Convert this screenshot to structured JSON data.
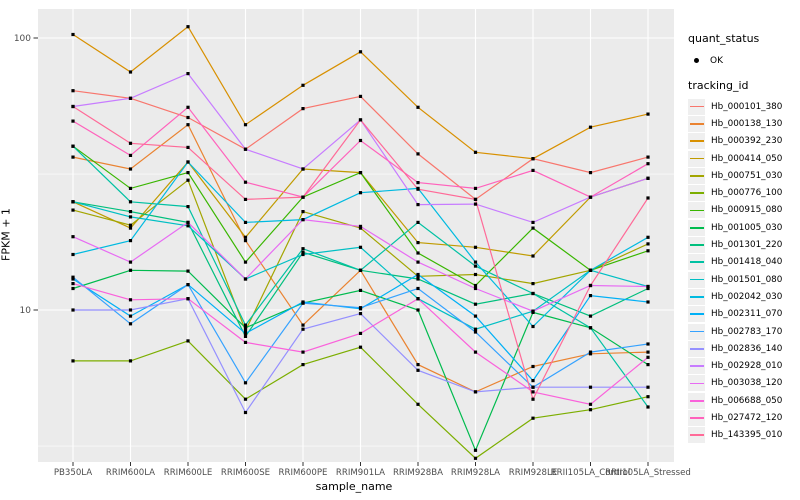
{
  "figure": {
    "background": "#FFFFFF",
    "panel_background": "#EBEBEB",
    "gridline_color": "#FFFFFF",
    "axis_text_color": "#4D4D4D",
    "tick_mark_color": "#333333",
    "point_color": "#000000"
  },
  "legend": {
    "quant_status": {
      "title": "quant_status",
      "items": [
        {
          "label": "OK",
          "symbol": "black-point"
        }
      ]
    },
    "tracking_id": {
      "title": "tracking_id"
    }
  },
  "chart_data": {
    "type": "line",
    "title": "",
    "xlabel": "sample_name",
    "ylabel": "FPKM + 1",
    "yscale": "log10",
    "ylim": [
      2.8,
      127
    ],
    "y_major_ticks": [
      100,
      10
    ],
    "y_minor_ticks": [
      31.6,
      3.16
    ],
    "grid": true,
    "legend_position": "right",
    "point_shape": "small black square",
    "x_categories": [
      "PB350LA",
      "RRIM600LA",
      "RRIM600LE",
      "RRIM600SE",
      "RRIM600PE",
      "RRIM901LA",
      "RRIM928BA",
      "RRIM928LA",
      "RRIM928LE",
      "RRII105LA_Control",
      "RRII105LA_Stressed"
    ],
    "series": [
      {
        "name": "Hb_000101_380",
        "color": "#F8766D",
        "values": [
          64,
          60,
          51,
          39,
          55,
          61,
          37.5,
          25.5,
          36,
          32,
          36.5
        ]
      },
      {
        "name": "Hb_000138_130",
        "color": "#EA8331",
        "values": [
          36.5,
          33,
          48,
          18,
          8.8,
          14,
          6.3,
          5.0,
          6.2,
          6.9,
          7.0
        ]
      },
      {
        "name": "Hb_000392_230",
        "color": "#D89000",
        "values": [
          103,
          75,
          110,
          48,
          67,
          89,
          55.6,
          38,
          36,
          47,
          52.5
        ]
      },
      {
        "name": "Hb_000414_050",
        "color": "#C09B00",
        "values": [
          25,
          20,
          35,
          18.5,
          33,
          32,
          17.7,
          17,
          15.8,
          26,
          30.5
        ]
      },
      {
        "name": "Hb_000751_030",
        "color": "#A3A500",
        "values": [
          23.3,
          20.5,
          30,
          8.4,
          23,
          20,
          13.3,
          13.5,
          12.5,
          14,
          17.5
        ]
      },
      {
        "name": "Hb_000776_100",
        "color": "#7CAE00",
        "values": [
          6.5,
          6.5,
          7.7,
          4.7,
          6.3,
          7.3,
          4.5,
          2.85,
          4.0,
          4.3,
          4.8
        ]
      },
      {
        "name": "Hb_000915_080",
        "color": "#39B600",
        "values": [
          40,
          28,
          32,
          15,
          26,
          32,
          16.2,
          12.3,
          20,
          14,
          16.5
        ]
      },
      {
        "name": "Hb_001005_030",
        "color": "#00BB4E",
        "values": [
          12,
          14,
          13.9,
          8.6,
          10.6,
          11.8,
          10,
          3.05,
          9.8,
          8.6,
          6.3
        ]
      },
      {
        "name": "Hb_001301_220",
        "color": "#00BF7D",
        "values": [
          25,
          23,
          21,
          8,
          16.3,
          14,
          13,
          10.5,
          11.5,
          9.5,
          12
        ]
      },
      {
        "name": "Hb_001418_040",
        "color": "#00C1A3",
        "values": [
          40,
          25,
          24,
          8.8,
          16.8,
          14,
          21,
          14.5,
          11.5,
          8.6,
          4.4
        ]
      },
      {
        "name": "Hb_001501_080",
        "color": "#00BFC4",
        "values": [
          25,
          22,
          20.4,
          13,
          16,
          17,
          11,
          8.5,
          9.9,
          14,
          12.2
        ]
      },
      {
        "name": "Hb_002042_030",
        "color": "#00BAE0",
        "values": [
          16,
          18,
          35,
          21,
          21.5,
          27,
          28,
          15,
          8.7,
          14,
          18.5
        ]
      },
      {
        "name": "Hb_002311_070",
        "color": "#00B0F6",
        "values": [
          13,
          9.5,
          12.4,
          8.2,
          10.7,
          10.1,
          13.5,
          9.5,
          5.5,
          11.3,
          10.7
        ]
      },
      {
        "name": "Hb_002783_170",
        "color": "#35A2FF",
        "values": [
          13.2,
          8.9,
          12.4,
          5.4,
          10.6,
          10.2,
          12,
          8.3,
          5.2,
          7.0,
          7.5
        ]
      },
      {
        "name": "Hb_002836_140",
        "color": "#9590FF",
        "values": [
          10,
          10,
          11,
          4.2,
          8.5,
          9.7,
          6.0,
          5.0,
          5.2,
          5.2,
          5.2
        ]
      },
      {
        "name": "Hb_002928_010",
        "color": "#C77CFF",
        "values": [
          56,
          60,
          74,
          39,
          33,
          50,
          24.4,
          24.5,
          21,
          26,
          30.5
        ]
      },
      {
        "name": "Hb_003038_120",
        "color": "#E76BF3",
        "values": [
          18.6,
          15,
          21,
          13,
          21.5,
          20.3,
          15,
          12,
          9.9,
          12.3,
          12.2
        ]
      },
      {
        "name": "Hb_006688_050",
        "color": "#FA62DB",
        "values": [
          12.5,
          10.9,
          11,
          7.6,
          7.0,
          8.2,
          11,
          7.0,
          5.0,
          4.5,
          6.7
        ]
      },
      {
        "name": "Hb_027472_120",
        "color": "#FF62BC",
        "values": [
          49.5,
          37,
          55.6,
          29.5,
          26,
          42,
          29.4,
          28,
          32.6,
          26,
          34.5
        ]
      },
      {
        "name": "Hb_143395_010",
        "color": "#FF6A98",
        "values": [
          56,
          41,
          39.6,
          25.5,
          26,
          50,
          27.8,
          25.5,
          4.7,
          12.3,
          25.8
        ]
      }
    ]
  }
}
